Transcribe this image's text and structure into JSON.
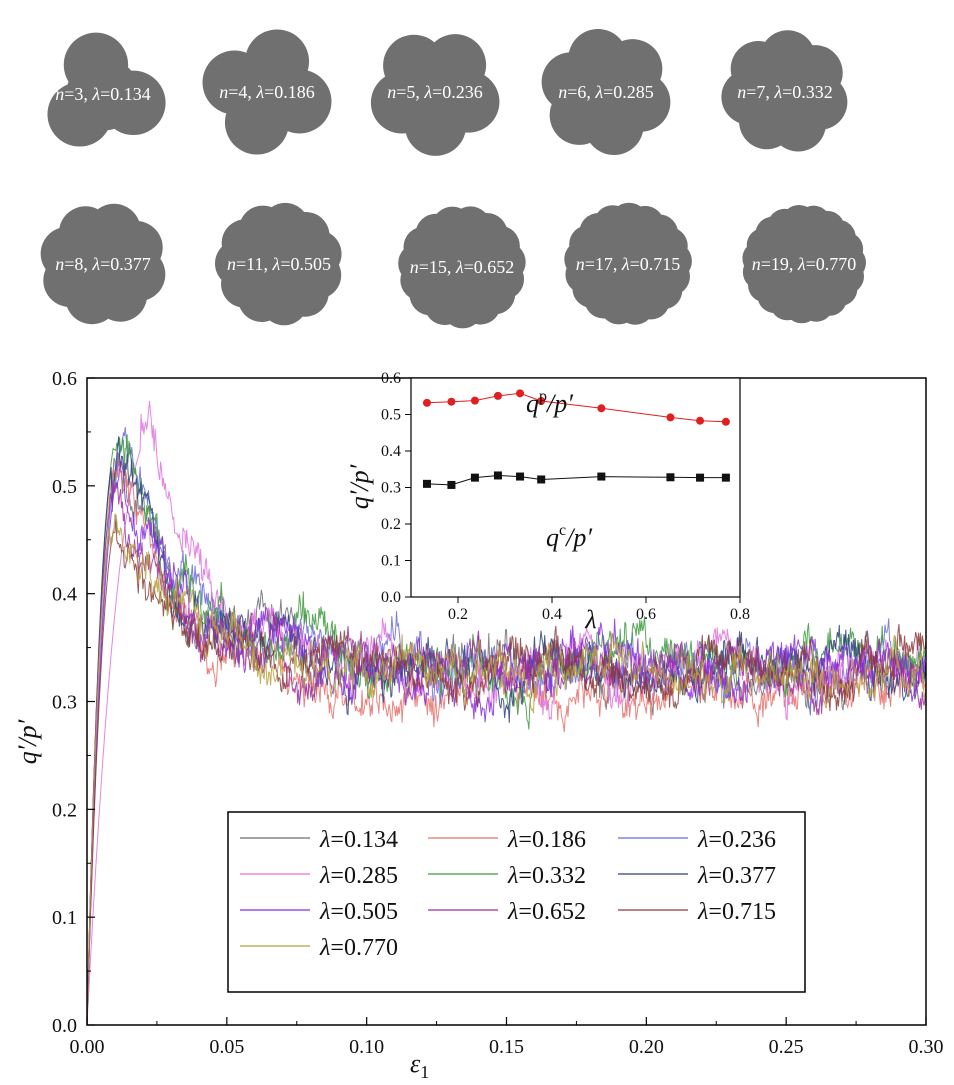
{
  "particles": [
    {
      "n": 3,
      "lambda": 0.134,
      "label": "n=3, λ=0.134"
    },
    {
      "n": 4,
      "lambda": 0.186,
      "label": "n=4, λ=0.186"
    },
    {
      "n": 5,
      "lambda": 0.236,
      "label": "n=5, λ=0.236"
    },
    {
      "n": 6,
      "lambda": 0.285,
      "label": "n=6, λ=0.285"
    },
    {
      "n": 7,
      "lambda": 0.332,
      "label": "n=7, λ=0.332"
    },
    {
      "n": 8,
      "lambda": 0.377,
      "label": "n=8, λ=0.377"
    },
    {
      "n": 11,
      "lambda": 0.505,
      "label": "n=11, λ=0.505"
    },
    {
      "n": 15,
      "lambda": 0.652,
      "label": "n=15, λ=0.652"
    },
    {
      "n": 17,
      "lambda": 0.715,
      "label": "n=17, λ=0.715"
    },
    {
      "n": 19,
      "lambda": 0.77,
      "label": "n=19, λ=0.770"
    }
  ],
  "particle_color": "#707070",
  "chart_data": [
    {
      "type": "line",
      "xlabel": "ε1",
      "ylabel": "q′/p′",
      "xlim": [
        0.0,
        0.3
      ],
      "ylim": [
        0.0,
        0.6
      ],
      "xticks": [
        "0.00",
        "0.05",
        "0.10",
        "0.15",
        "0.20",
        "0.25",
        "0.30"
      ],
      "yticks": [
        "0.0",
        "0.1",
        "0.2",
        "0.3",
        "0.4",
        "0.5",
        "0.6"
      ],
      "legend_position": "bottom-center",
      "series": [
        {
          "name": "λ=0.134",
          "color": "#6b6e74",
          "peak": 0.53,
          "x_peak": 0.011,
          "residual": 0.33
        },
        {
          "name": "λ=0.186",
          "color": "#e8706a",
          "peak": 0.535,
          "x_peak": 0.012,
          "residual": 0.31
        },
        {
          "name": "λ=0.236",
          "color": "#6a6adc",
          "peak": 0.535,
          "x_peak": 0.013,
          "residual": 0.33
        },
        {
          "name": "λ=0.285",
          "color": "#e070e0",
          "peak": 0.55,
          "x_peak": 0.024,
          "residual": 0.33
        },
        {
          "name": "λ=0.332",
          "color": "#3c9a3c",
          "peak": 0.555,
          "x_peak": 0.012,
          "residual": 0.335
        },
        {
          "name": "λ=0.377",
          "color": "#2f3f7f",
          "peak": 0.535,
          "x_peak": 0.011,
          "residual": 0.33
        },
        {
          "name": "λ=0.505",
          "color": "#8a2be2",
          "peak": 0.52,
          "x_peak": 0.013,
          "residual": 0.33
        },
        {
          "name": "λ=0.652",
          "color": "#9b2f9b",
          "peak": 0.49,
          "x_peak": 0.01,
          "residual": 0.33
        },
        {
          "name": "λ=0.715",
          "color": "#8b3a3a",
          "peak": 0.475,
          "x_peak": 0.012,
          "residual": 0.33
        },
        {
          "name": "λ=0.770",
          "color": "#b8a040",
          "peak": 0.475,
          "x_peak": 0.01,
          "residual": 0.33
        }
      ]
    },
    {
      "type": "scatter",
      "xlabel": "λ",
      "ylabel": "q′/p′",
      "xlim": [
        0.1,
        0.8
      ],
      "ylim": [
        0.0,
        0.6
      ],
      "xticks": [
        "0.2",
        "0.4",
        "0.6",
        "0.8"
      ],
      "yticks": [
        "0.0",
        "0.1",
        "0.2",
        "0.3",
        "0.4",
        "0.5",
        "0.6"
      ],
      "x": [
        0.134,
        0.186,
        0.236,
        0.285,
        0.332,
        0.377,
        0.505,
        0.652,
        0.715,
        0.77
      ],
      "series": [
        {
          "name": "qp/p′",
          "color": "#e02020",
          "marker": "circle",
          "values": [
            0.532,
            0.535,
            0.538,
            0.551,
            0.558,
            0.537,
            0.517,
            0.492,
            0.483,
            0.48
          ]
        },
        {
          "name": "qc/p′",
          "color": "#111111",
          "marker": "square",
          "values": [
            0.31,
            0.307,
            0.327,
            0.333,
            0.33,
            0.322,
            0.33,
            0.328,
            0.327,
            0.327
          ]
        }
      ]
    }
  ]
}
